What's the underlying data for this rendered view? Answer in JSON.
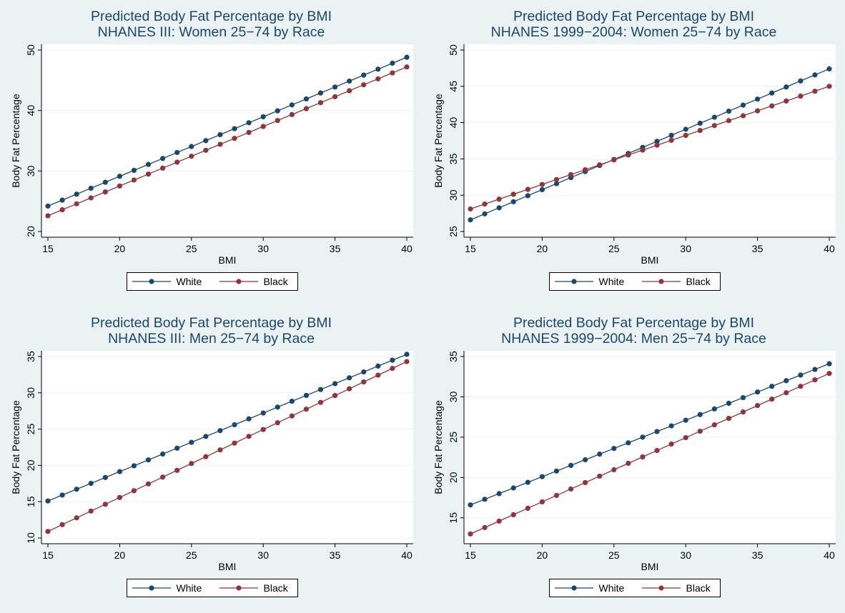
{
  "chart_data": [
    {
      "type": "line",
      "title": "Predicted Body Fat Percentage by BMI",
      "subtitle": "NHANES III: Women 25−74 by Race",
      "xlabel": "BMI",
      "ylabel": "Body Fat Percentage",
      "xlim": [
        15,
        40
      ],
      "ylim": [
        20,
        50
      ],
      "xticks": [
        15,
        20,
        25,
        30,
        35,
        40
      ],
      "yticks": [
        20,
        30,
        40,
        50
      ],
      "grid": true,
      "legend_position": "bottom",
      "series": [
        {
          "name": "White",
          "color": "#1a476f",
          "x_start": 15,
          "x_end": 40,
          "step": 1,
          "y_start": 24.2,
          "y_end": 48.8
        },
        {
          "name": "Black",
          "color": "#90353b",
          "x_start": 15,
          "x_end": 40,
          "step": 1,
          "y_start": 22.6,
          "y_end": 47.2
        }
      ]
    },
    {
      "type": "line",
      "title": "Predicted Body Fat Percentage by BMI",
      "subtitle": "NHANES 1999−2004: Women 25−74 by Race",
      "xlabel": "BMI",
      "ylabel": "Body Fat Percentage",
      "xlim": [
        15,
        40
      ],
      "ylim": [
        25,
        50
      ],
      "xticks": [
        15,
        20,
        25,
        30,
        35,
        40
      ],
      "yticks": [
        25,
        30,
        35,
        40,
        45,
        50
      ],
      "grid": true,
      "legend_position": "bottom",
      "series": [
        {
          "name": "White",
          "color": "#1a476f",
          "x_start": 15,
          "x_end": 40,
          "step": 1,
          "y_start": 26.6,
          "y_end": 47.4
        },
        {
          "name": "Black",
          "color": "#90353b",
          "x_start": 15,
          "x_end": 40,
          "step": 1,
          "y_start": 28.1,
          "y_end": 45.0
        }
      ]
    },
    {
      "type": "line",
      "title": "Predicted Body Fat Percentage by BMI",
      "subtitle": "NHANES III: Men 25−74 by Race",
      "xlabel": "BMI",
      "ylabel": "Body Fat Percentage",
      "xlim": [
        15,
        40
      ],
      "ylim": [
        10,
        35
      ],
      "xticks": [
        15,
        20,
        25,
        30,
        35,
        40
      ],
      "yticks": [
        10,
        15,
        20,
        25,
        30,
        35
      ],
      "grid": true,
      "legend_position": "bottom",
      "series": [
        {
          "name": "White",
          "color": "#1a476f",
          "x_start": 15,
          "x_end": 40,
          "step": 1,
          "y_start": 15.1,
          "y_end": 35.3
        },
        {
          "name": "Black",
          "color": "#90353b",
          "x_start": 15,
          "x_end": 40,
          "step": 1,
          "y_start": 10.9,
          "y_end": 34.3
        }
      ]
    },
    {
      "type": "line",
      "title": "Predicted Body Fat Percentage by BMI",
      "subtitle": "NHANES 1999−2004: Men 25−74 by Race",
      "xlabel": "BMI",
      "ylabel": "Body Fat Percentage",
      "xlim": [
        15,
        40
      ],
      "ylim": [
        12.5,
        35
      ],
      "xticks": [
        15,
        20,
        25,
        30,
        35,
        40
      ],
      "yticks": [
        15,
        20,
        25,
        30,
        35
      ],
      "grid": true,
      "legend_position": "bottom",
      "series": [
        {
          "name": "White",
          "color": "#1a476f",
          "x_start": 15,
          "x_end": 40,
          "step": 1,
          "y_start": 16.6,
          "y_end": 34.1
        },
        {
          "name": "Black",
          "color": "#90353b",
          "x_start": 15,
          "x_end": 40,
          "step": 1,
          "y_start": 13.0,
          "y_end": 32.9
        }
      ]
    }
  ]
}
